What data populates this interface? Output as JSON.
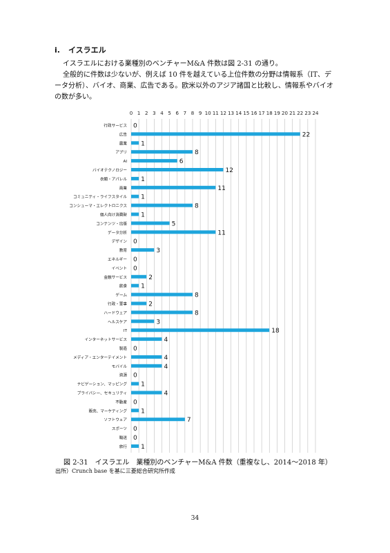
{
  "section": {
    "number": "i.",
    "title": "イスラエル"
  },
  "paragraphs": [
    "イスラエルにおける業種別のベンチャーM&A 件数は図 2-31 の通り。",
    "全般的に件数は少ないが、例えば 10 件を越えている上位件数の分野は情報系（IT、データ分析）、バイオ、商業、広告である。欧米以外のアジア諸国と比較し、情報系やバイオの数が多い。"
  ],
  "chart_data": {
    "type": "bar",
    "orientation": "horizontal",
    "color": "#1ea5dc",
    "xlim": [
      0,
      24
    ],
    "xticks": [
      "0",
      "1",
      "2",
      "3",
      "4",
      "5",
      "6",
      "7",
      "8",
      "9",
      "10",
      "11",
      "12",
      "13",
      "14",
      "15",
      "16",
      "17",
      "18",
      "19",
      "20",
      "21",
      "22",
      "23",
      "24"
    ],
    "grid": true,
    "categories": [
      "行政サービス",
      "広告",
      "農業",
      "アプリ",
      "AI",
      "バイオテクノロジー",
      "衣類・アパレル",
      "商業",
      "コミュニティ・ライフスタイル",
      "コンシューマ・エレクトロニクス",
      "個人向け消費財",
      "コンテンツ・出版",
      "データ分析",
      "デザイン",
      "教育",
      "エネルギー",
      "イベント",
      "金融サービス",
      "飲食",
      "ゲーム",
      "行政・軍事",
      "ハードウェア",
      "ヘルスケア",
      "IT",
      "インターネットサービス",
      "製造",
      "メディア・エンターテイメント",
      "モバイル",
      "資源",
      "ナビゲーション、マッピング",
      "プライバシー、セキュリティ",
      "不動産",
      "販売、マーケティング",
      "ソフトウェア",
      "スポーツ",
      "輸送",
      "旅行"
    ],
    "values": [
      0,
      22,
      1,
      8,
      6,
      12,
      1,
      11,
      1,
      8,
      1,
      5,
      11,
      0,
      3,
      0,
      0,
      2,
      1,
      8,
      2,
      8,
      3,
      18,
      4,
      0,
      4,
      4,
      0,
      1,
      4,
      0,
      1,
      7,
      0,
      0,
      1
    ],
    "data_labels": [
      "0",
      "22",
      "1",
      "8",
      "6",
      "12",
      "1",
      "11",
      "1",
      "8",
      "1",
      "5",
      "11",
      "0",
      "3",
      "0",
      "0",
      "2",
      "1",
      "8",
      "2",
      "8",
      "3",
      "18",
      "4",
      "0",
      "4",
      "4",
      "0",
      "1",
      "4",
      "0",
      "1",
      "7",
      "0",
      "0",
      "1"
    ]
  },
  "caption": "図 2-31　イスラエル　業種別のベンチャーM&A 件数（重複なし、2014〜2018 年）",
  "source": "出所）Crunch base を基に三菱総合研究所作成",
  "page_number": "34"
}
